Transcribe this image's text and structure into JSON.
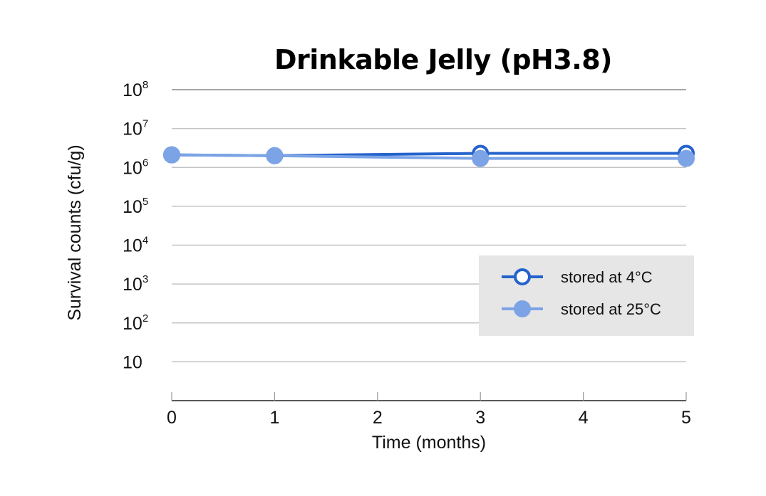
{
  "chart_data": {
    "type": "line",
    "title": "Drinkable Jelly (pH3.8)",
    "xlabel": "Time (months)",
    "ylabel": "Survival counts (cfu/g)",
    "yscale": "log",
    "x_ticks": [
      "0",
      "1",
      "2",
      "3",
      "4",
      "5"
    ],
    "y_ticks": [
      {
        "base": "10",
        "exp": "8"
      },
      {
        "base": "10",
        "exp": "7"
      },
      {
        "base": "10",
        "exp": "6"
      },
      {
        "base": "10",
        "exp": "5"
      },
      {
        "base": "10",
        "exp": "4"
      },
      {
        "base": "10",
        "exp": "3"
      },
      {
        "base": "10",
        "exp": "2"
      },
      {
        "base": "10",
        "exp": ""
      }
    ],
    "xlim": [
      0,
      5
    ],
    "ylim": [
      1,
      100000000
    ],
    "grid": "horizontal",
    "legend_position": "inside-right",
    "series": [
      {
        "name": "stored at 4°C",
        "x": [
          0,
          1,
          3,
          5
        ],
        "values": [
          2100000,
          2000000,
          2300000,
          2300000
        ],
        "color": "#2563CC",
        "marker": "hollow-circle"
      },
      {
        "name": "stored at 25°C",
        "x": [
          0,
          1,
          3,
          5
        ],
        "values": [
          2100000,
          2000000,
          1700000,
          1700000
        ],
        "color": "#7BA3E6",
        "marker": "filled-circle"
      }
    ]
  },
  "legend": {
    "items": [
      {
        "label": "stored at 4°C"
      },
      {
        "label": "stored at 25°C"
      }
    ]
  }
}
